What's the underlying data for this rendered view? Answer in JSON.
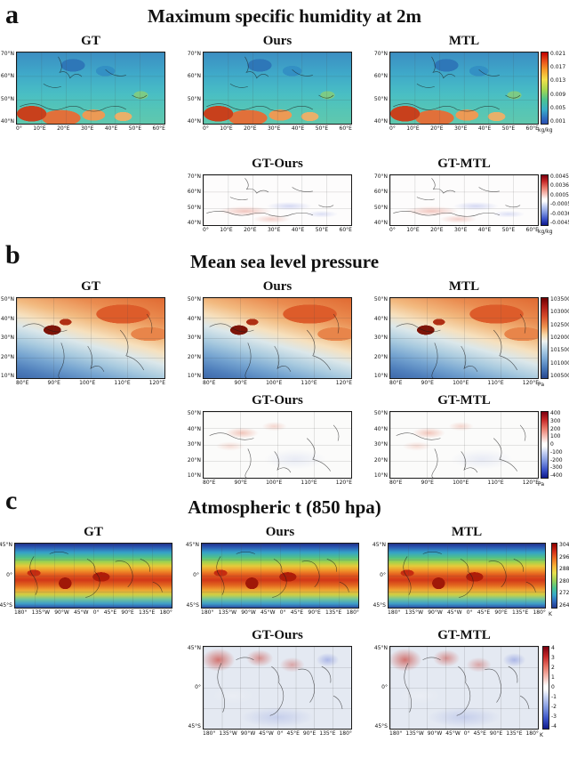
{
  "panel_a": {
    "label": "a",
    "title": "Maximum specific humidity at 2m",
    "maps": {
      "gt": "GT",
      "ours": "Ours",
      "mtl": "MTL",
      "gt_ours": "GT-Ours",
      "gt_mtl": "GT-MTL"
    },
    "yticks": [
      "70°N",
      "60°N",
      "50°N",
      "40°N"
    ],
    "xticks": [
      "0°",
      "10°E",
      "20°E",
      "30°E",
      "40°E",
      "50°E",
      "60°E"
    ],
    "colorbar_main": {
      "ticks": [
        "0.021",
        "0.017",
        "0.013",
        "0.009",
        "0.005",
        "0.001"
      ],
      "unit": "kg/kg"
    },
    "colorbar_diff": {
      "ticks": [
        "0.0045",
        "0.0036",
        "0.0005",
        "-0.0005",
        "-0.0036",
        "-0.0045"
      ],
      "unit": "kg/kg"
    }
  },
  "panel_b": {
    "label": "b",
    "title": "Mean sea level pressure",
    "maps": {
      "gt": "GT",
      "ours": "Ours",
      "mtl": "MTL",
      "gt_ours": "GT-Ours",
      "gt_mtl": "GT-MTL"
    },
    "yticks": [
      "50°N",
      "40°N",
      "30°N",
      "20°N",
      "10°N"
    ],
    "xticks": [
      "80°E",
      "90°E",
      "100°E",
      "110°E",
      "120°E"
    ],
    "colorbar_main": {
      "ticks": [
        "103500",
        "103000",
        "102500",
        "102000",
        "101500",
        "101000",
        "100500"
      ],
      "unit": "Pa"
    },
    "colorbar_diff": {
      "ticks": [
        "400",
        "300",
        "200",
        "100",
        "0",
        "-100",
        "-200",
        "-300",
        "-400"
      ],
      "unit": "Pa"
    }
  },
  "panel_c": {
    "label": "c",
    "title": "Atmospheric t (850 hpa)",
    "maps": {
      "gt": "GT",
      "ours": "Ours",
      "mtl": "MTL",
      "gt_ours": "GT-Ours",
      "gt_mtl": "GT-MTL"
    },
    "yticks": [
      "45°N",
      "0°",
      "45°S"
    ],
    "xticks": [
      "180°",
      "135°W",
      "90°W",
      "45°W",
      "0°",
      "45°E",
      "90°E",
      "135°E",
      "180°"
    ],
    "colorbar_main": {
      "ticks": [
        "304",
        "296",
        "288",
        "280",
        "272",
        "264"
      ],
      "unit": "K"
    },
    "colorbar_diff": {
      "ticks": [
        "4",
        "3",
        "2",
        "1",
        "0",
        "-1",
        "-2",
        "-3",
        "-4"
      ],
      "unit": "K"
    }
  }
}
